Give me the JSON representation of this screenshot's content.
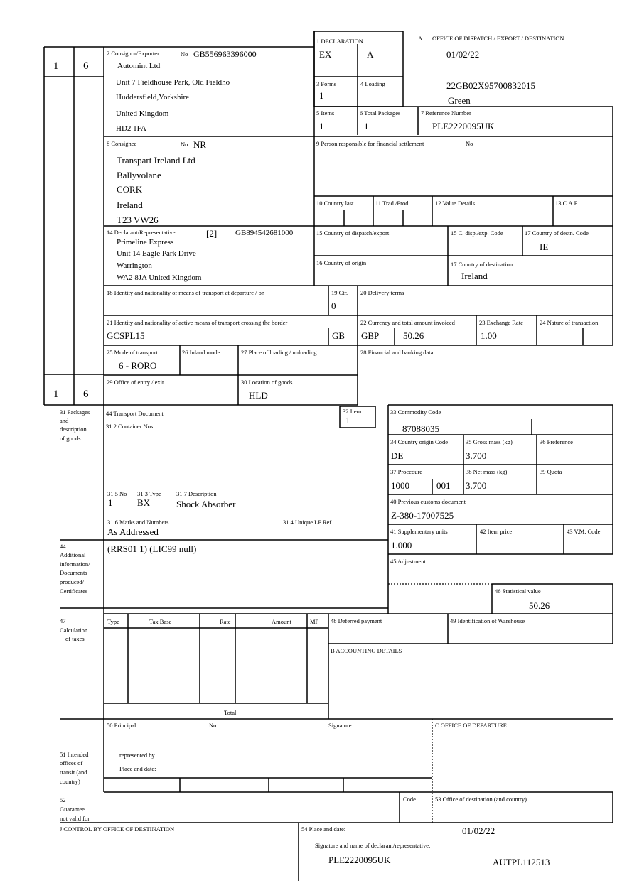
{
  "header": {
    "box_a_label": "A",
    "office_label": "OFFICE OF DISPATCH / EXPORT / DESTINATION",
    "date": "01/02/22",
    "mrn": "22GB02X95700832015",
    "route": "Green"
  },
  "side": {
    "top_form": "1",
    "top_copy": "6",
    "bottom_form": "1",
    "bottom_copy": "6"
  },
  "box1": {
    "label": "1 DECLARATION",
    "type": "EX",
    "subtype": "A"
  },
  "box2": {
    "label": "2 Consignor/Exporter",
    "no_label": "No",
    "no": "GB556963396000",
    "lines": [
      "Automint Ltd",
      "Unit 7 Fieldhouse Park, Old Fieldho",
      "Huddersfield,Yorkshire",
      "United Kingdom",
      "HD2 1FA"
    ]
  },
  "box3": {
    "label": "3 Forms",
    "value": "1"
  },
  "box4": {
    "label": "4 Loading"
  },
  "box5": {
    "label": "5 Items",
    "value": "1"
  },
  "box6": {
    "label": "6 Total Packages",
    "value": "1"
  },
  "box7": {
    "label": "7 Reference Number",
    "value": "PLE2220095UK"
  },
  "box8": {
    "label": "8 Consignee",
    "no_label": "No",
    "no": "NR",
    "lines": [
      "Transpart Ireland Ltd",
      "Ballyvolane",
      "CORK",
      "Ireland",
      "T23 VW26"
    ]
  },
  "box9": {
    "label": "9 Person responsible for financial settlement",
    "no_label": "No"
  },
  "box10": {
    "label": "10 Country last"
  },
  "box11": {
    "label": "11 Trad./Prod."
  },
  "box12": {
    "label": "12 Value Details"
  },
  "box13": {
    "label": "13 C.A.P"
  },
  "box14": {
    "label": "14 Declarant/Representative",
    "code": "[2]",
    "no": "GB894542681000",
    "lines": [
      "Primeline Express",
      "Unit 14 Eagle Park Drive",
      "Warrington",
      "WA2 8JA United Kingdom"
    ]
  },
  "box15": {
    "label": "15 Country of dispatch/export"
  },
  "box15a": {
    "label": "15 C. disp./exp. Code"
  },
  "box17a": {
    "label": "17 Country of destn. Code",
    "value": "IE"
  },
  "box16": {
    "label": "16 Country of origin"
  },
  "box17": {
    "label": "17 Country of destination",
    "value": "Ireland"
  },
  "box18": {
    "label": "18 Identity and nationality of means of transport at departure / on"
  },
  "box19": {
    "label": "19 Ctr.",
    "value": "0"
  },
  "box20": {
    "label": "20 Delivery terms"
  },
  "box21": {
    "label": "21 Identity and nationality of active means of transport crossing the border",
    "value": "GCSPL15",
    "nationality": "GB"
  },
  "box22": {
    "label": "22 Currency and total amount invoiced",
    "currency": "GBP",
    "amount": "50.26"
  },
  "box23": {
    "label": "23 Exchange Rate",
    "value": "1.00"
  },
  "box24": {
    "label": "24 Nature of transaction"
  },
  "box25": {
    "label": "25 Mode of transport",
    "value": "6 - RORO"
  },
  "box26": {
    "label": "26 Inland mode"
  },
  "box27": {
    "label": "27 Place of loading / unloading"
  },
  "box28": {
    "label": "28 Financial and banking data"
  },
  "box29": {
    "label": "29 Office of entry / exit"
  },
  "box30": {
    "label": "30 Location of goods",
    "value": "HLD"
  },
  "box31": {
    "label_lines": [
      "31 Packages",
      "and",
      "description",
      "of goods"
    ],
    "transport_doc": "44 Transport Document",
    "container": "31.2 Container Nos",
    "no_label": "31.5 No",
    "type_label": "31.3 Type",
    "desc_label": "31.7 Description",
    "no": "1",
    "type": "BX",
    "desc": "Shock Absorber",
    "marks_label": "31.6 Marks and Numbers",
    "marks": "As Addressed",
    "ucr_label": "31.4 Unique LP Ref"
  },
  "box32": {
    "label": "32 Item",
    "value": "1"
  },
  "box33": {
    "label": "33 Commodity Code",
    "value": "87088035"
  },
  "box34": {
    "label": "34 Country origin Code",
    "value": "DE"
  },
  "box35": {
    "label": "35 Gross mass (kg)",
    "value": "3.700"
  },
  "box36": {
    "label": "36 Preference"
  },
  "box37": {
    "label": "37 Procedure",
    "value": "1000",
    "value2": "001"
  },
  "box38": {
    "label": "38 Net mass (kg)",
    "value": "3.700"
  },
  "box39": {
    "label": "39 Quota"
  },
  "box40": {
    "label": "40 Previous customs document",
    "value": "Z-380-17007525"
  },
  "box41": {
    "label": "41 Supplementary units",
    "value": "1.000"
  },
  "box42": {
    "label": "42 Item price"
  },
  "box43": {
    "label": "43 V.M. Code"
  },
  "box44": {
    "label_lines": [
      "44",
      "Additional",
      "information/",
      "Documents",
      "produced/",
      "Certificates"
    ],
    "value": "(RRS01 1) (LIC99 null)"
  },
  "box45": {
    "label": "45 Adjustment"
  },
  "box46": {
    "label": "46 Statistical value",
    "value": "50.26"
  },
  "box47": {
    "label_lines": [
      "47",
      "Calculation",
      "of taxes"
    ],
    "columns": [
      "Type",
      "Tax Base",
      "Rate",
      "Amount",
      "MP"
    ],
    "total": "Total"
  },
  "box48": {
    "label": "48 Deferred payment"
  },
  "box49": {
    "label": "49 Identification of Warehouse"
  },
  "boxB": {
    "label": "B ACCOUNTING DETAILS"
  },
  "box50": {
    "label": "50 Principal",
    "no_label": "No",
    "signature": "Signature",
    "represented": "represented by",
    "place": "Place and date:"
  },
  "boxC": {
    "label": "C OFFICE OF DEPARTURE"
  },
  "box51": {
    "label_lines": [
      "51 Intended",
      "offices of",
      "transit (and",
      "country)"
    ]
  },
  "box52": {
    "label_lines": [
      "52",
      "Guarantee",
      "not valid for"
    ],
    "code": "Code"
  },
  "box53": {
    "label": "53 Office of destination (and country)"
  },
  "boxJ": {
    "label": "J CONTROL BY OFFICE OF DESTINATION"
  },
  "box54": {
    "label": "54 Place and date:",
    "date": "01/02/22",
    "sig_label": "Signature and name of declarant/representative:",
    "ref": "PLE2220095UK",
    "code": "AUTPL112513"
  }
}
